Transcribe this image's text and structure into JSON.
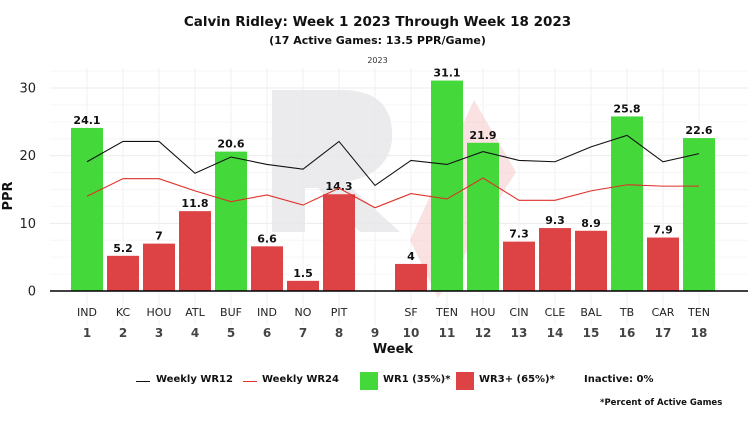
{
  "header": {
    "title": "Calvin Ridley: Week 1 2023 Through Week 18 2023",
    "subtitle": "(17 Active Games: 13.5 PPR/Game)",
    "season_label": "2023"
  },
  "legend": {
    "wr12_label": "Weekly WR12",
    "wr24_label": "Weekly WR24",
    "wr1_label": "WR1 (35%)*",
    "wr3_label": "WR3+ (65%)*",
    "inactive_label": "Inactive: 0%",
    "footnote": "*Percent of Active Games"
  },
  "colors": {
    "wr1": "#44d83a",
    "wr3": "#dd4244",
    "wr12_line": "#111111",
    "wr24_line": "#e0302a"
  },
  "chart_data": {
    "type": "bar",
    "title": "Calvin Ridley: Week 1 2023 Through Week 18 2023",
    "xlabel": "Week",
    "ylabel": "PPR",
    "ylim": [
      -5,
      33
    ],
    "yticks": [
      0,
      10,
      20,
      30
    ],
    "grid": true,
    "weeks": [
      1,
      2,
      3,
      4,
      5,
      6,
      7,
      8,
      9,
      10,
      11,
      12,
      13,
      14,
      15,
      16,
      17,
      18
    ],
    "opponents": [
      "IND",
      "KC",
      "HOU",
      "ATL",
      "BUF",
      "IND",
      "NO",
      "PIT",
      "",
      "SF",
      "TEN",
      "HOU",
      "CIN",
      "CLE",
      "BAL",
      "TB",
      "CAR",
      "TEN"
    ],
    "values": [
      24.1,
      5.2,
      7,
      11.8,
      20.6,
      6.6,
      1.5,
      14.3,
      null,
      4,
      31.1,
      21.9,
      7.3,
      9.3,
      8.9,
      25.8,
      7.9,
      22.6
    ],
    "value_labels": [
      "24.1",
      "5.2",
      "7",
      "11.8",
      "20.6",
      "6.6",
      "1.5",
      "14.3",
      "",
      "4",
      "31.1",
      "21.9",
      "7.3",
      "9.3",
      "8.9",
      "25.8",
      "7.9",
      "22.6"
    ],
    "tiers": [
      "WR1",
      "WR3+",
      "WR3+",
      "WR3+",
      "WR1",
      "WR3+",
      "WR3+",
      "WR3+",
      "",
      "WR3+",
      "WR1",
      "WR1",
      "WR3+",
      "WR3+",
      "WR3+",
      "WR1",
      "WR3+",
      "WR1"
    ],
    "series": [
      {
        "name": "Weekly WR12",
        "type": "line",
        "values": [
          19.1,
          22.1,
          22.1,
          17.4,
          19.8,
          18.7,
          18.0,
          22.1,
          15.6,
          19.3,
          18.7,
          20.6,
          19.3,
          19.1,
          21.3,
          23.0,
          19.1,
          20.3
        ]
      },
      {
        "name": "Weekly WR24",
        "type": "line",
        "values": [
          14.0,
          16.6,
          16.6,
          14.8,
          13.2,
          14.2,
          12.7,
          15.2,
          12.3,
          14.4,
          13.6,
          16.7,
          13.4,
          13.4,
          14.8,
          15.7,
          15.5,
          15.5
        ]
      }
    ]
  }
}
